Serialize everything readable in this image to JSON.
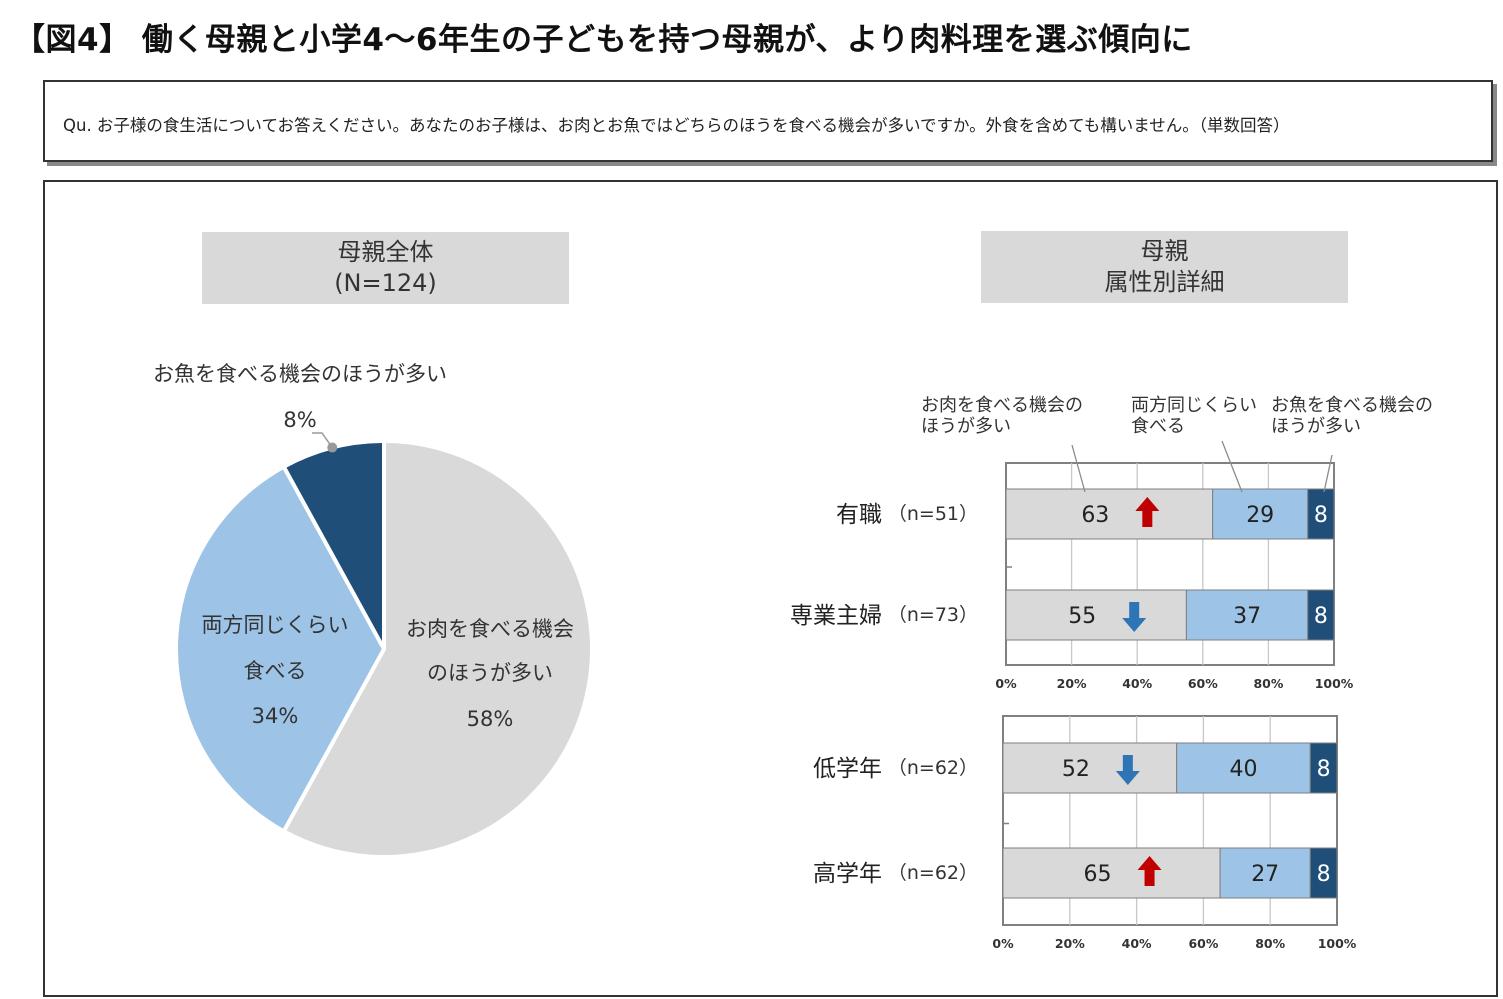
{
  "page_title": "【図4】 働く母親と小学4～6年生の子どもを持つ母親が、より肉料理を選ぶ傾向に",
  "question": "Qu. お子様の食生活についてお答えください。あなたのお子様は、お肉とお魚ではどちらのほうを食べる機会が多いですか。外食を含めても構いません。（単数回答）",
  "colors": {
    "meat": "#d9d9d9",
    "both": "#9dc3e6",
    "fish": "#1f4e79",
    "up_arrow": "#c00000",
    "down_arrow": "#2e75b6"
  },
  "chart_data": [
    {
      "type": "pie",
      "header": [
        "母親全体",
        "(N=124)"
      ],
      "slices": [
        {
          "label": [
            "お肉を食べる機会",
            "のほうが多い"
          ],
          "value": 58,
          "pct_text": "58%"
        },
        {
          "label": [
            "両方同じくらい",
            "食べる"
          ],
          "value": 34,
          "pct_text": "34%"
        },
        {
          "label": [
            "お魚を食べる機会のほうが多い"
          ],
          "value": 8,
          "pct_text": "8%"
        }
      ]
    },
    {
      "type": "bar",
      "stacked": true,
      "orientation": "horizontal",
      "header": [
        "母親",
        "属性別詳細"
      ],
      "legend": [
        [
          "お肉を食べる機会の",
          "ほうが多い"
        ],
        [
          "両方同じくらい",
          "食べる"
        ],
        [
          "お魚を食べる機会の",
          "ほうが多い"
        ]
      ],
      "xlim": [
        0,
        100
      ],
      "xtick_labels": [
        "0%",
        "20%",
        "40%",
        "60%",
        "80%",
        "100%"
      ],
      "groups": [
        {
          "rows": [
            {
              "label": "有職",
              "n": "（n=51）",
              "values": [
                63,
                29,
                8
              ],
              "trend": "up"
            },
            {
              "label": "専業主婦",
              "n": "（n=73）",
              "values": [
                55,
                37,
                8
              ],
              "trend": "down"
            }
          ]
        },
        {
          "rows": [
            {
              "label": "低学年",
              "n": "（n=62）",
              "values": [
                52,
                40,
                8
              ],
              "trend": "down"
            },
            {
              "label": "高学年",
              "n": "（n=62）",
              "values": [
                65,
                27,
                8
              ],
              "trend": "up"
            }
          ]
        }
      ]
    }
  ]
}
